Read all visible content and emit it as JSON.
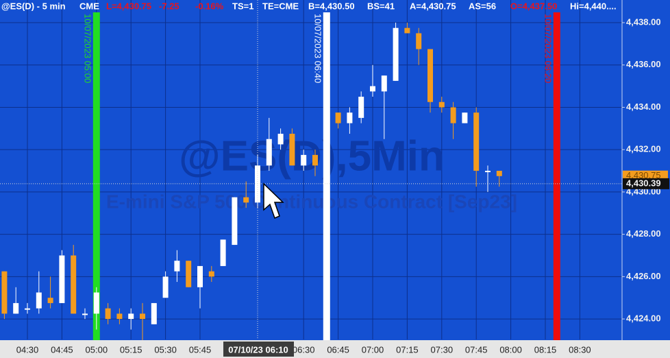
{
  "header": {
    "items": [
      {
        "text": "@ES(D) - 5 min",
        "color": "#ffffff"
      },
      {
        "text": "CME",
        "color": "#ffffff"
      },
      {
        "text": "L=4,430.75",
        "color": "#e8141e"
      },
      {
        "text": "-7.25",
        "color": "#e8141e"
      },
      {
        "text": "-0.16%",
        "color": "#e8141e"
      },
      {
        "text": "TS=1",
        "color": "#ffffff"
      },
      {
        "text": "TE=CME",
        "color": "#ffffff"
      },
      {
        "text": "B=4,430.50",
        "color": "#ffffff"
      },
      {
        "text": "BS=41",
        "color": "#ffffff"
      },
      {
        "text": "A=4,430.75",
        "color": "#ffffff"
      },
      {
        "text": "AS=56",
        "color": "#ffffff"
      },
      {
        "text": "O=4,437.50",
        "color": "#e8141e"
      },
      {
        "text": "Hi=4,440....",
        "color": "#ffffff"
      }
    ]
  },
  "chart_data": {
    "type": "candlestick",
    "watermark": "@ES(D),5Min",
    "subtitle": "E-mini S&P 500 Continuous Contract [Sep23]",
    "categories": [
      "04:20",
      "04:25",
      "04:30",
      "04:35",
      "04:40",
      "04:45",
      "04:50",
      "04:55",
      "05:00",
      "05:05",
      "05:10",
      "05:15",
      "05:20",
      "05:25",
      "05:30",
      "05:35",
      "05:40",
      "05:45",
      "05:50",
      "05:55",
      "06:00",
      "06:05",
      "06:10",
      "06:15",
      "06:20",
      "06:25",
      "06:30",
      "06:35",
      "06:45",
      "06:50",
      "06:55",
      "07:00",
      "07:05",
      "07:10",
      "07:15",
      "07:20",
      "07:25",
      "07:30",
      "07:35",
      "07:40",
      "07:45",
      "07:50",
      "07:55"
    ],
    "open": [
      4426.25,
      4424.25,
      4424.5,
      4424.5,
      4425.0,
      4424.75,
      4427.0,
      4424.25,
      4424.25,
      4424.5,
      4424.25,
      4424.0,
      4424.25,
      4423.75,
      4425.0,
      4426.25,
      4426.75,
      4425.5,
      4426.25,
      4426.5,
      4427.5,
      4429.75,
      4429.5,
      4431.25,
      4432.25,
      4432.75,
      4431.25,
      4431.75,
      4433.75,
      4433.25,
      4433.5,
      4434.75,
      4434.75,
      4435.25,
      4437.75,
      4437.5,
      4436.75,
      4434.25,
      4434.0,
      4433.25,
      4433.75,
      4431.0,
      4431.0
    ],
    "high": [
      4426.25,
      4425.5,
      4424.75,
      4426.25,
      4426.0,
      4427.25,
      4427.5,
      4424.5,
      4425.5,
      4424.75,
      4424.5,
      4424.5,
      4424.75,
      4424.75,
      4426.25,
      4427.25,
      4426.75,
      4426.5,
      4426.5,
      4427.75,
      4429.75,
      4430.5,
      4431.75,
      4433.5,
      4433.0,
      4433.0,
      4432.0,
      4432.0,
      4433.75,
      4434.0,
      4434.75,
      4436.0,
      4435.5,
      4438.0,
      4438.0,
      4437.75,
      4436.75,
      4434.5,
      4434.25,
      4433.75,
      4434.0,
      4431.25,
      4431.0
    ],
    "low": [
      4424.0,
      4424.25,
      4424.25,
      4424.25,
      4424.5,
      4424.75,
      4424.25,
      4424.0,
      4423.5,
      4423.75,
      4423.75,
      4423.5,
      4423.0,
      4423.75,
      4425.0,
      4425.75,
      4425.5,
      4424.5,
      4425.75,
      4426.5,
      4427.5,
      4429.25,
      4429.25,
      4431.0,
      4432.0,
      4431.25,
      4431.0,
      4430.75,
      4433.0,
      4432.75,
      4433.25,
      4434.5,
      4432.5,
      4435.25,
      4437.5,
      4436.0,
      4433.75,
      4433.75,
      4432.5,
      4433.25,
      4430.25,
      4430.0,
      4430.25
    ],
    "close": [
      4424.25,
      4424.75,
      4424.5,
      4425.25,
      4424.75,
      4427.0,
      4424.25,
      4424.25,
      4425.25,
      4424.0,
      4424.0,
      4424.25,
      4424.0,
      4424.75,
      4426.0,
      4426.75,
      4425.5,
      4426.5,
      4426.0,
      4427.75,
      4429.75,
      4429.5,
      4431.25,
      4432.5,
      4432.75,
      4431.25,
      4431.75,
      4431.25,
      4433.25,
      4433.75,
      4434.5,
      4435.0,
      4435.5,
      4437.75,
      4437.5,
      4436.75,
      4434.25,
      4434.0,
      4433.25,
      4433.75,
      4431.0,
      4431.0,
      4430.75
    ],
    "up_color": "#ffffff",
    "down_color": "#f39c1f",
    "ylim": [
      4423.03,
      4439.07
    ],
    "yticks": [
      {
        "value": 4424,
        "label": "4,424.00"
      },
      {
        "value": 4426,
        "label": "4,426.00"
      },
      {
        "value": 4428,
        "label": "4,428.00"
      },
      {
        "value": 4430,
        "label": "4,430.00"
      },
      {
        "value": 4432,
        "label": "4,432.00"
      },
      {
        "value": 4434,
        "label": "4,434.00"
      },
      {
        "value": 4436,
        "label": "4,436.00"
      },
      {
        "value": 4438,
        "label": "4,438.00"
      }
    ],
    "xticks": [
      "04:30",
      "04:45",
      "05:00",
      "05:15",
      "05:30",
      "05:45",
      "06:30",
      "06:45",
      "07:00",
      "07:15",
      "07:30",
      "07:45",
      "08:00",
      "08:15",
      "08:30"
    ],
    "grid": true,
    "vlines": [
      {
        "time": "05:00",
        "label": "10/07/2023 05:00",
        "color": "#22dd22"
      },
      {
        "time": "06:40",
        "label": "10/07/2023 06:40",
        "color": "#ffffff"
      },
      {
        "time": "08:20",
        "label": "10/07/2023 08:20",
        "color": "#ee0d0d"
      }
    ],
    "last_price": {
      "value": 4430.75,
      "label": "4,430.75"
    },
    "crosshair": {
      "price": {
        "value": 4430.39,
        "label": "4,430.39"
      },
      "time": "07/10/23 06:10"
    }
  }
}
